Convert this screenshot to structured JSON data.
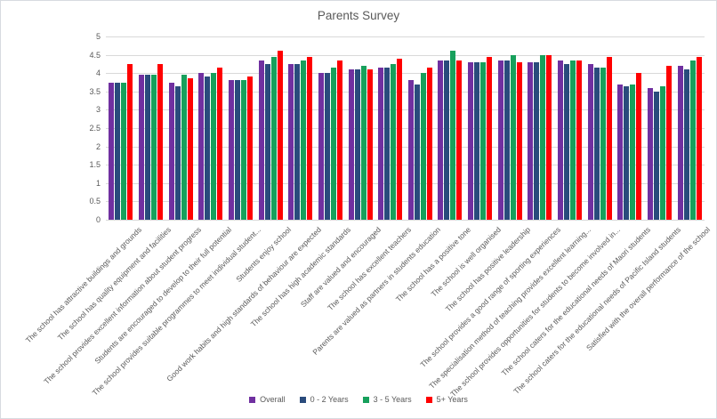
{
  "title": "Parents Survey",
  "chart_data": {
    "type": "bar",
    "title": "Parents Survey",
    "xlabel": "",
    "ylabel": "",
    "ylim": [
      0,
      5
    ],
    "ytick_step": 0.5,
    "yticks": [
      "5",
      "4.5",
      "4",
      "3.5",
      "3",
      "2.5",
      "2",
      "1.5",
      "1",
      "0.5",
      "0"
    ],
    "grid": true,
    "legend_position": "bottom",
    "gridline_color": "#d9d9d9",
    "text_color": "#595959",
    "categories": [
      "The school has attractive buildings and grounds",
      "The school has quality equipment and facilities",
      "The school provides excellent information about student progress",
      "Students are encouraged to develop to their full potential",
      "The school provides suitable programmes to meet individual student...",
      "Students enjoy school",
      "Good work habits and high standards of behaviour are expected",
      "The school has high academic standards",
      "Staff are valued and encouraged",
      "The school has excellent teachers",
      "Parents are valued as partners in students education",
      "The school has a positive tone",
      "The school is well organised",
      "The school has positive leadership",
      "The school provides a good range of sporting experiences",
      "The specialisation method of teaching provides excellent learning...",
      "The school provides opportunities for students to become involved in...",
      "The school caters for the educational needs of Maori students",
      "The school caters for the educational needs of Pacific Island students",
      "Satisfied with the overall performance of the school"
    ],
    "series": [
      {
        "name": "Overall",
        "color": "#7030A0",
        "values": [
          3.75,
          3.95,
          3.75,
          4.0,
          3.8,
          4.35,
          4.25,
          4.0,
          4.1,
          4.15,
          3.8,
          4.35,
          4.3,
          4.35,
          4.3,
          4.35,
          4.25,
          3.7,
          3.6,
          4.2
        ]
      },
      {
        "name": "0 - 2 Years",
        "color": "#2A4B7C",
        "values": [
          3.75,
          3.95,
          3.65,
          3.9,
          3.8,
          4.25,
          4.25,
          4.0,
          4.1,
          4.15,
          3.7,
          4.35,
          4.3,
          4.35,
          4.3,
          4.25,
          4.15,
          3.65,
          3.5,
          4.1
        ]
      },
      {
        "name": "3 - 5 Years",
        "color": "#17A05C",
        "values": [
          3.75,
          3.95,
          3.95,
          4.0,
          3.8,
          4.45,
          4.35,
          4.15,
          4.2,
          4.25,
          4.0,
          4.6,
          4.3,
          4.5,
          4.5,
          4.35,
          4.15,
          3.7,
          3.65,
          4.35
        ]
      },
      {
        "name": "5+ Years",
        "color": "#FF0000",
        "values": [
          4.25,
          4.25,
          3.85,
          4.15,
          3.9,
          4.6,
          4.45,
          4.35,
          4.1,
          4.4,
          4.15,
          4.35,
          4.45,
          4.3,
          4.5,
          4.35,
          4.45,
          4.0,
          4.2,
          4.45
        ]
      }
    ]
  }
}
